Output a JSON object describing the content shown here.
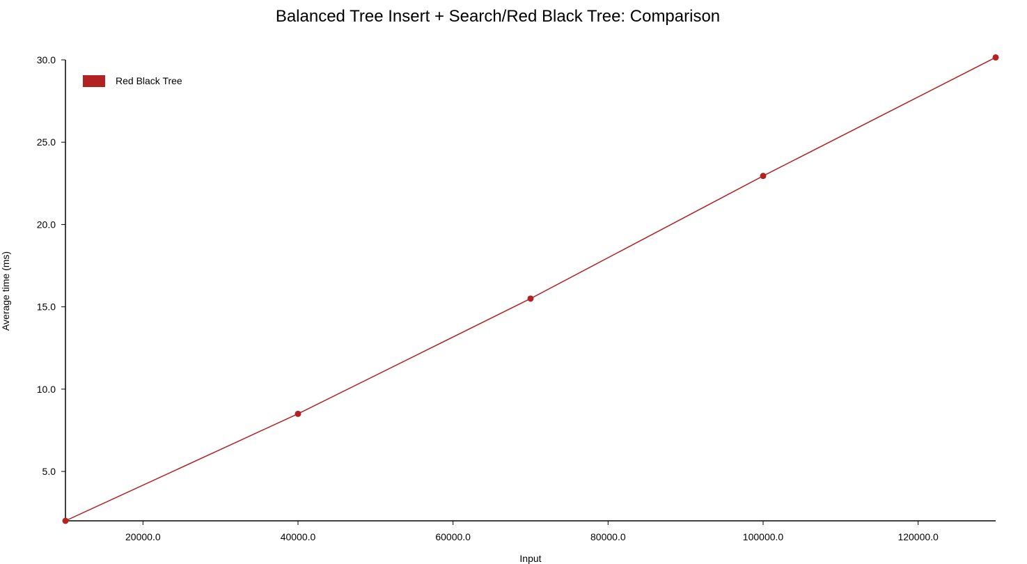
{
  "chart_data": {
    "type": "line",
    "title": "Balanced Tree Insert + Search/Red Black Tree: Comparison",
    "xlabel": "Input",
    "ylabel": "Average time (ms)",
    "xlim": [
      10000,
      130000
    ],
    "ylim": [
      2.0,
      30.0
    ],
    "x_ticks": [
      20000,
      40000,
      60000,
      80000,
      100000,
      120000
    ],
    "x_tick_labels": [
      "20000.0",
      "40000.0",
      "60000.0",
      "80000.0",
      "100000.0",
      "120000.0"
    ],
    "y_ticks": [
      5,
      10,
      15,
      20,
      25,
      30
    ],
    "y_tick_labels": [
      "5.0",
      "10.0",
      "15.0",
      "20.0",
      "25.0",
      "30.0"
    ],
    "grid": false,
    "legend_position": "top-left",
    "series": [
      {
        "name": "Red Black Tree",
        "color": "#b22222",
        "x": [
          10000,
          40000,
          70000,
          100000,
          130000
        ],
        "y": [
          2.0,
          8.5,
          15.5,
          22.95,
          30.15
        ]
      }
    ]
  }
}
